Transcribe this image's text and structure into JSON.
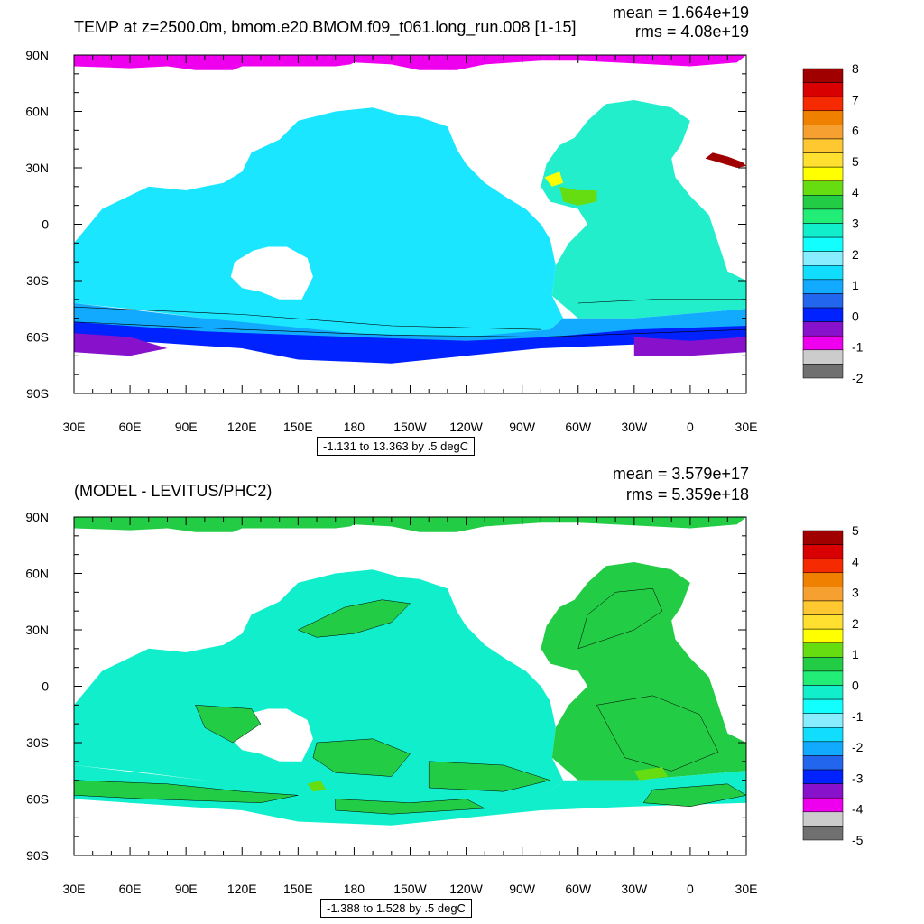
{
  "chart_data": [
    {
      "type": "heatmap",
      "title": "TEMP at z=2500.0m, bmom.e20.BMOM.f09_t061.long_run.008 [1-15]",
      "stats": {
        "mean": "mean = 1.664e+19",
        "rms": "rms = 4.08e+19"
      },
      "x_ticks": [
        "30E",
        "60E",
        "90E",
        "120E",
        "150E",
        "180",
        "150W",
        "120W",
        "90W",
        "60W",
        "30W",
        "0",
        "30E"
      ],
      "y_ticks": [
        "90N",
        "60N",
        "30N",
        "0",
        "30S",
        "60S",
        "90S"
      ],
      "xlim": [
        30,
        390
      ],
      "ylim": [
        -90,
        90
      ],
      "range_label": "-1.131 to 13.363 by .5 degC",
      "colorbar": {
        "labels": [
          "8",
          "7",
          "6",
          "5",
          "4",
          "3",
          "2",
          "1",
          "0",
          "-1",
          "-2"
        ],
        "colors": [
          "#a00000",
          "#d80000",
          "#f52a00",
          "#f08000",
          "#f5a030",
          "#ffc830",
          "#ffe030",
          "#ffff00",
          "#66dd11",
          "#22cc44",
          "#22ee77",
          "#11eecc",
          "#11ffff",
          "#88eeff",
          "#11ddff",
          "#11aaff",
          "#2266ee",
          "#0022ff",
          "#8811cc",
          "#ee00ee",
          "#cccccc",
          "#707070"
        ]
      },
      "field_colors": {
        "ocean": "#1ae6ff",
        "atlantic": "#22eecc",
        "southern_band": "#11aaff",
        "southern_deep": "#0022ff",
        "antarctic": "#8811cc",
        "arctic": "#ee00ee",
        "med": "#a00000",
        "caribbean": "#66dd11",
        "gulf": "#ffff00"
      }
    },
    {
      "type": "heatmap",
      "title": "(MODEL - LEVITUS/PHC2)",
      "stats": {
        "mean": "mean = 3.579e+17",
        "rms": "rms = 5.359e+18"
      },
      "x_ticks": [
        "30E",
        "60E",
        "90E",
        "120E",
        "150E",
        "180",
        "150W",
        "120W",
        "90W",
        "60W",
        "30W",
        "0",
        "30E"
      ],
      "y_ticks": [
        "90N",
        "60N",
        "30N",
        "0",
        "30S",
        "60S",
        "90S"
      ],
      "xlim": [
        30,
        390
      ],
      "ylim": [
        -90,
        90
      ],
      "range_label": "-1.388 to 1.528 by .5 degC",
      "colorbar": {
        "labels": [
          "5",
          "4",
          "3",
          "2",
          "1",
          "0",
          "-1",
          "-2",
          "-3",
          "-4",
          "-5"
        ],
        "colors": [
          "#a00000",
          "#d80000",
          "#f52a00",
          "#f08000",
          "#f5a030",
          "#ffc830",
          "#ffe030",
          "#ffff00",
          "#66dd11",
          "#22cc44",
          "#22ee77",
          "#11eecc",
          "#11ffff",
          "#88eeff",
          "#11ddff",
          "#11aaff",
          "#2266ee",
          "#0022ff",
          "#8811cc",
          "#ee00ee",
          "#cccccc",
          "#707070"
        ]
      },
      "field_colors": {
        "ocean": "#11eecc",
        "positive": "#22cc44",
        "hot": "#66dd11"
      }
    }
  ]
}
